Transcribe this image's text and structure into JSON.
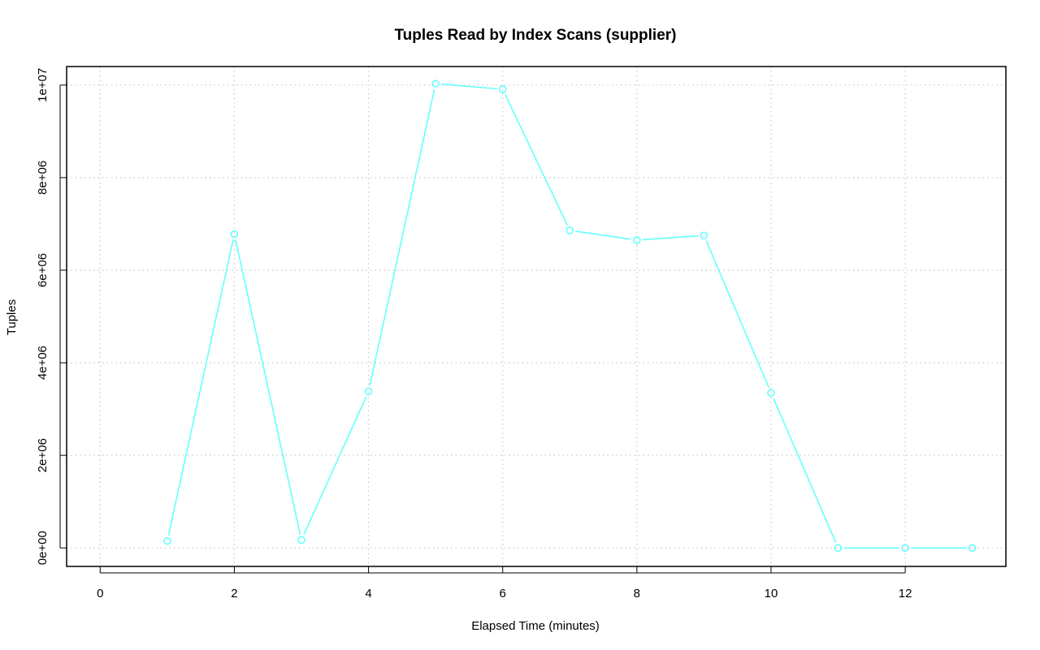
{
  "chart_data": {
    "type": "line",
    "title": "Tuples Read by Index Scans (supplier)",
    "xlabel": "Elapsed Time (minutes)",
    "ylabel": "Tuples",
    "xlim": [
      -0.5,
      13.5
    ],
    "ylim": [
      -400000,
      10400000
    ],
    "xticks": [
      0,
      2,
      4,
      6,
      8,
      10,
      12
    ],
    "xtick_labels": [
      "0",
      "2",
      "4",
      "6",
      "8",
      "10",
      "12"
    ],
    "yticks": [
      0,
      2000000,
      4000000,
      6000000,
      8000000,
      10000000
    ],
    "ytick_labels": [
      "0e+00",
      "2e+06",
      "4e+06",
      "6e+06",
      "8e+06",
      "1e+07"
    ],
    "grid": true,
    "color": "#66ffff",
    "series": [
      {
        "x": [
          1,
          2,
          3,
          4,
          5,
          6,
          7,
          8,
          9,
          10,
          11,
          12,
          13
        ],
        "values": [
          150000,
          6780000,
          170000,
          3380000,
          10030000,
          9910000,
          6860000,
          6650000,
          6750000,
          3350000,
          0,
          0,
          0
        ]
      }
    ]
  }
}
